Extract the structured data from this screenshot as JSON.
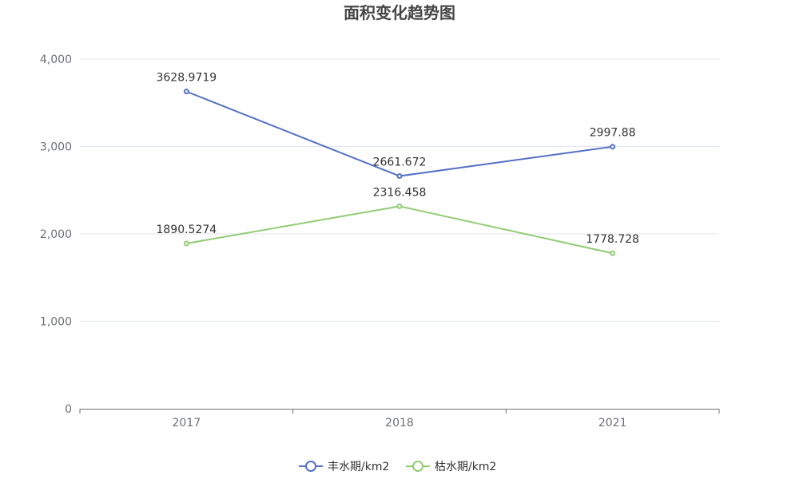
{
  "chart_data": {
    "type": "line",
    "title": "面积变化趋势图",
    "categories": [
      "2017",
      "2018",
      "2021"
    ],
    "series": [
      {
        "name": "丰水期/km2",
        "values": [
          3628.9719,
          2661.672,
          2997.88
        ],
        "labels": [
          "3628.9719",
          "2661.672",
          "2997.88"
        ],
        "color": "#5470c6"
      },
      {
        "name": "枯水期/km2",
        "values": [
          1890.5274,
          2316.458,
          1778.728
        ],
        "labels": [
          "1890.5274",
          "2316.458",
          "1778.728"
        ],
        "color": "#91cc75"
      }
    ],
    "ylim": [
      0,
      4000
    ],
    "yticks": [
      "0",
      "1,000",
      "2,000",
      "3,000",
      "4,000"
    ],
    "ytick_values": [
      0,
      1000,
      2000,
      3000,
      4000
    ],
    "grid": true,
    "legend_position": "bottom"
  }
}
